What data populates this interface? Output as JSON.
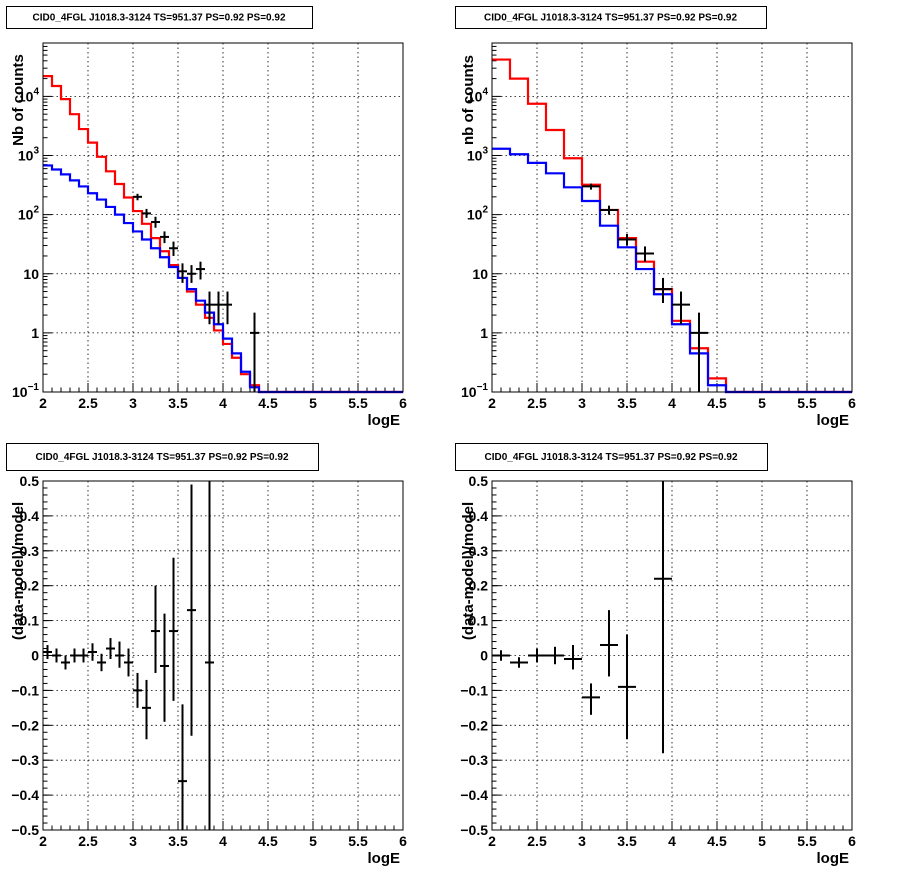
{
  "chart_data": [
    {
      "type": "line",
      "title": "CID0_4FGL J1018.3-3124 TS=951.37 PS=0.92 PS=0.92",
      "xlabel": "logE",
      "ylabel": "Nb of counts",
      "log_y": true,
      "xlim": [
        2,
        6
      ],
      "ylim": [
        0.1,
        80000
      ],
      "x_ticks": [
        "2",
        "2.5",
        "3",
        "3.5",
        "4",
        "4.5",
        "5",
        "5.5",
        "6"
      ],
      "y_ticks": [
        {
          "label": "10^-1",
          "value": 0.1,
          "base": "10",
          "exp": "−1"
        },
        {
          "label": "1",
          "value": 1
        },
        {
          "label": "10",
          "value": 10
        },
        {
          "label": "10^2",
          "value": 100,
          "base": "10",
          "exp": "2"
        },
        {
          "label": "10^3",
          "value": 1000,
          "base": "10",
          "exp": "3"
        },
        {
          "label": "10^4",
          "value": 10000,
          "base": "10",
          "exp": "4"
        }
      ],
      "grid": true,
      "series": [
        {
          "kind": "step",
          "color": "#ff0000",
          "bin_width": 0.1,
          "x_start": 2.0,
          "values": [
            22000,
            15000,
            9000,
            5000,
            2800,
            1650,
            950,
            540,
            330,
            195,
            115,
            70,
            40,
            24,
            14,
            8.5,
            5.0,
            3.0,
            1.8,
            1.1,
            0.65,
            0.38,
            0.2,
            0.13,
            0.1,
            0.1,
            0.1,
            0.1,
            0.1,
            0.1,
            0.1,
            0.1,
            0.1,
            0.1,
            0.1,
            0.1,
            0.1,
            0.1,
            0.1,
            0.1
          ]
        },
        {
          "kind": "step",
          "color": "#0000ff",
          "bin_width": 0.1,
          "x_start": 2.0,
          "values": [
            680,
            580,
            480,
            380,
            300,
            230,
            180,
            135,
            100,
            72,
            52,
            38,
            27,
            19,
            13,
            8.5,
            5.5,
            3.5,
            2.2,
            1.4,
            0.8,
            0.45,
            0.22,
            0.12,
            0.1,
            0.1,
            0.1,
            0.1,
            0.1,
            0.1,
            0.1,
            0.1,
            0.1,
            0.1,
            0.1,
            0.1,
            0.1,
            0.1,
            0.1,
            0.1
          ]
        },
        {
          "kind": "errorbar",
          "color": "#000000",
          "x_err": 0.05,
          "points": [
            {
              "x": 3.05,
              "y": 200,
              "lo": 175,
              "hi": 225
            },
            {
              "x": 3.15,
              "y": 105,
              "lo": 88,
              "hi": 125
            },
            {
              "x": 3.25,
              "y": 75,
              "lo": 60,
              "hi": 92
            },
            {
              "x": 3.35,
              "y": 42,
              "lo": 33,
              "hi": 52
            },
            {
              "x": 3.45,
              "y": 27,
              "lo": 20,
              "hi": 35
            },
            {
              "x": 3.55,
              "y": 11,
              "lo": 7,
              "hi": 15
            },
            {
              "x": 3.65,
              "y": 10,
              "lo": 7,
              "hi": 14
            },
            {
              "x": 3.75,
              "y": 12,
              "lo": 8,
              "hi": 16
            },
            {
              "x": 3.85,
              "y": 3,
              "lo": 1.4,
              "hi": 5
            },
            {
              "x": 3.95,
              "y": 3,
              "lo": 1.4,
              "hi": 5
            },
            {
              "x": 4.05,
              "y": 3,
              "lo": 1.4,
              "hi": 5
            },
            {
              "x": 4.35,
              "y": 1,
              "lo": 0.1,
              "hi": 2.2
            }
          ]
        }
      ]
    },
    {
      "type": "line",
      "title": "CID0_4FGL J1018.3-3124 TS=951.37 PS=0.92 PS=0.92",
      "xlabel": "logE",
      "ylabel": "nb of counts",
      "log_y": true,
      "xlim": [
        2,
        6
      ],
      "ylim": [
        0.1,
        80000
      ],
      "x_ticks": [
        "2",
        "2.5",
        "3",
        "3.5",
        "4",
        "4.5",
        "5",
        "5.5",
        "6"
      ],
      "y_ticks": [
        {
          "label": "10^-1",
          "value": 0.1,
          "base": "10",
          "exp": "−1"
        },
        {
          "label": "1",
          "value": 1
        },
        {
          "label": "10",
          "value": 10
        },
        {
          "label": "10^2",
          "value": 100,
          "base": "10",
          "exp": "2"
        },
        {
          "label": "10^3",
          "value": 1000,
          "base": "10",
          "exp": "3"
        },
        {
          "label": "10^4",
          "value": 10000,
          "base": "10",
          "exp": "4"
        }
      ],
      "grid": true,
      "series": [
        {
          "kind": "step",
          "color": "#ff0000",
          "bin_width": 0.2,
          "x_start": 2.0,
          "values": [
            42000,
            20000,
            7500,
            2700,
            900,
            320,
            120,
            40,
            16,
            5.5,
            1.6,
            0.55,
            0.17,
            0.1,
            0.1,
            0.1,
            0.1,
            0.1,
            0.1,
            0.1
          ]
        },
        {
          "kind": "step",
          "color": "#0000ff",
          "bin_width": 0.2,
          "x_start": 2.0,
          "values": [
            1300,
            1050,
            750,
            500,
            290,
            170,
            65,
            28,
            12,
            4.5,
            1.4,
            0.45,
            0.13,
            0.1,
            0.1,
            0.1,
            0.1,
            0.1,
            0.1,
            0.1
          ]
        },
        {
          "kind": "errorbar",
          "color": "#000000",
          "x_err": 0.1,
          "points": [
            {
              "x": 3.1,
              "y": 300,
              "lo": 265,
              "hi": 335
            },
            {
              "x": 3.3,
              "y": 120,
              "lo": 100,
              "hi": 142
            },
            {
              "x": 3.5,
              "y": 38,
              "lo": 30,
              "hi": 47
            },
            {
              "x": 3.7,
              "y": 22,
              "lo": 16,
              "hi": 29
            },
            {
              "x": 3.9,
              "y": 5.5,
              "lo": 3.2,
              "hi": 8.5
            },
            {
              "x": 4.1,
              "y": 3,
              "lo": 1.4,
              "hi": 5
            },
            {
              "x": 4.3,
              "y": 1,
              "lo": 0.1,
              "hi": 2.2
            }
          ]
        }
      ]
    },
    {
      "type": "scatter",
      "title": "CID0_4FGL J1018.3-3124 TS=951.37 PS=0.92 PS=0.92",
      "xlabel": "logE",
      "ylabel": "(data-model)/model",
      "log_y": false,
      "xlim": [
        2,
        6
      ],
      "ylim": [
        -0.5,
        0.5
      ],
      "x_ticks": [
        "2",
        "2.5",
        "3",
        "3.5",
        "4",
        "4.5",
        "5",
        "5.5",
        "6"
      ],
      "y_ticks": [
        {
          "label": "−0.5",
          "value": -0.5
        },
        {
          "label": "−0.4",
          "value": -0.4
        },
        {
          "label": "−0.3",
          "value": -0.3
        },
        {
          "label": "−0.2",
          "value": -0.2
        },
        {
          "label": "−0.1",
          "value": -0.1
        },
        {
          "label": "0",
          "value": 0
        },
        {
          "label": "0.1",
          "value": 0.1
        },
        {
          "label": "0.2",
          "value": 0.2
        },
        {
          "label": "0.3",
          "value": 0.3
        },
        {
          "label": "0.4",
          "value": 0.4
        },
        {
          "label": "0.5",
          "value": 0.5
        }
      ],
      "grid": true,
      "series": [
        {
          "kind": "errorbar",
          "color": "#000000",
          "x_err": 0.05,
          "points": [
            {
              "x": 2.05,
              "y": 0.01,
              "lo": -0.01,
              "hi": 0.03
            },
            {
              "x": 2.15,
              "y": 0.0,
              "lo": -0.02,
              "hi": 0.02
            },
            {
              "x": 2.25,
              "y": -0.02,
              "lo": -0.04,
              "hi": 0.0
            },
            {
              "x": 2.35,
              "y": 0.0,
              "lo": -0.02,
              "hi": 0.02
            },
            {
              "x": 2.45,
              "y": 0.0,
              "lo": -0.02,
              "hi": 0.02
            },
            {
              "x": 2.55,
              "y": 0.01,
              "lo": -0.015,
              "hi": 0.035
            },
            {
              "x": 2.65,
              "y": -0.02,
              "lo": -0.045,
              "hi": 0.005
            },
            {
              "x": 2.75,
              "y": 0.02,
              "lo": -0.01,
              "hi": 0.05
            },
            {
              "x": 2.85,
              "y": 0.0,
              "lo": -0.035,
              "hi": 0.04
            },
            {
              "x": 2.95,
              "y": -0.02,
              "lo": -0.06,
              "hi": 0.02
            },
            {
              "x": 3.05,
              "y": -0.1,
              "lo": -0.15,
              "hi": -0.05
            },
            {
              "x": 3.15,
              "y": -0.15,
              "lo": -0.24,
              "hi": -0.07
            },
            {
              "x": 3.25,
              "y": 0.07,
              "lo": -0.05,
              "hi": 0.2
            },
            {
              "x": 3.35,
              "y": -0.03,
              "lo": -0.19,
              "hi": 0.12
            },
            {
              "x": 3.45,
              "y": 0.07,
              "lo": -0.13,
              "hi": 0.28
            },
            {
              "x": 3.55,
              "y": -0.36,
              "lo": -0.5,
              "hi": -0.14
            },
            {
              "x": 3.65,
              "y": 0.13,
              "lo": -0.23,
              "hi": 0.49
            },
            {
              "x": 3.85,
              "y": -0.02,
              "lo": -0.5,
              "hi": 0.5
            }
          ]
        }
      ]
    },
    {
      "type": "scatter",
      "title": "CID0_4FGL J1018.3-3124 TS=951.37 PS=0.92 PS=0.92",
      "xlabel": "logE",
      "ylabel": "(data-model)/model",
      "log_y": false,
      "xlim": [
        2,
        6
      ],
      "ylim": [
        -0.5,
        0.5
      ],
      "x_ticks": [
        "2",
        "2.5",
        "3",
        "3.5",
        "4",
        "4.5",
        "5",
        "5.5",
        "6"
      ],
      "y_ticks": [
        {
          "label": "−0.5",
          "value": -0.5
        },
        {
          "label": "−0.4",
          "value": -0.4
        },
        {
          "label": "−0.3",
          "value": -0.3
        },
        {
          "label": "−0.2",
          "value": -0.2
        },
        {
          "label": "−0.1",
          "value": -0.1
        },
        {
          "label": "0",
          "value": 0
        },
        {
          "label": "0.1",
          "value": 0.1
        },
        {
          "label": "0.2",
          "value": 0.2
        },
        {
          "label": "0.3",
          "value": 0.3
        },
        {
          "label": "0.4",
          "value": 0.4
        },
        {
          "label": "0.5",
          "value": 0.5
        }
      ],
      "grid": true,
      "series": [
        {
          "kind": "errorbar",
          "color": "#000000",
          "x_err": 0.1,
          "points": [
            {
              "x": 2.1,
              "y": 0.0,
              "lo": -0.015,
              "hi": 0.015
            },
            {
              "x": 2.3,
              "y": -0.02,
              "lo": -0.035,
              "hi": -0.005
            },
            {
              "x": 2.5,
              "y": 0.0,
              "lo": -0.02,
              "hi": 0.02
            },
            {
              "x": 2.7,
              "y": 0.0,
              "lo": -0.025,
              "hi": 0.025
            },
            {
              "x": 2.9,
              "y": -0.01,
              "lo": -0.04,
              "hi": 0.03
            },
            {
              "x": 3.1,
              "y": -0.12,
              "lo": -0.17,
              "hi": -0.08
            },
            {
              "x": 3.3,
              "y": 0.03,
              "lo": -0.06,
              "hi": 0.13
            },
            {
              "x": 3.5,
              "y": -0.09,
              "lo": -0.24,
              "hi": 0.06
            },
            {
              "x": 3.9,
              "y": 0.22,
              "lo": -0.28,
              "hi": 0.5
            }
          ]
        }
      ]
    }
  ]
}
